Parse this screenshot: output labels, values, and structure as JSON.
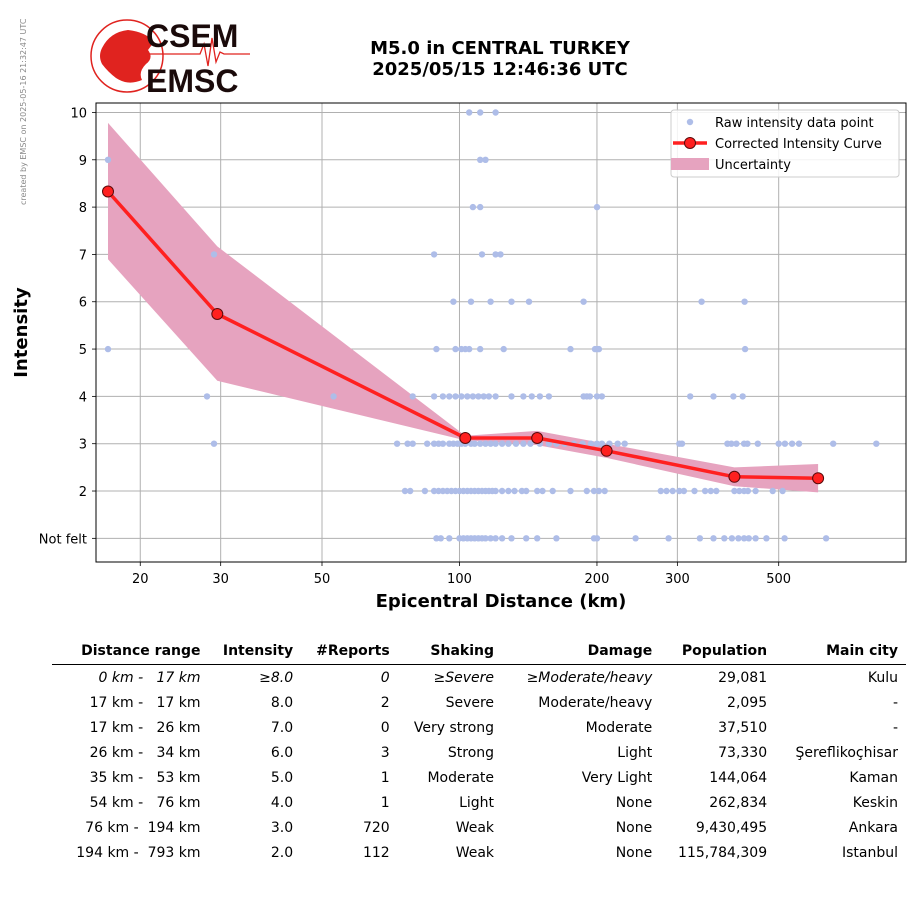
{
  "stamp": "created by EMSC on 2025-05-16 21:32:47 UTC",
  "logo": {
    "line1": "CSEM",
    "line2": "EMSC"
  },
  "title": {
    "line1": "M5.0 in CENTRAL TURKEY",
    "line2": "2025/05/15 12:46:36 UTC"
  },
  "colors": {
    "raw": "#aebde8",
    "curve": "#ff2020",
    "uncertainty": "#e6a3bf",
    "grid": "#b0b0b0",
    "logo": "#e0231f"
  },
  "chart_data": {
    "type": "scatter",
    "xlabel": "Epicentral Distance (km)",
    "ylabel": "Intensity",
    "xscale": "log",
    "xlim": [
      16,
      950
    ],
    "ylim": [
      0.5,
      10.2
    ],
    "xticks": [
      20,
      30,
      50,
      100,
      200,
      300,
      500
    ],
    "yticks": [
      {
        "value": 1,
        "label": "Not felt"
      },
      {
        "value": 2,
        "label": "2"
      },
      {
        "value": 3,
        "label": "3"
      },
      {
        "value": 4,
        "label": "4"
      },
      {
        "value": 5,
        "label": "5"
      },
      {
        "value": 6,
        "label": "6"
      },
      {
        "value": 7,
        "label": "7"
      },
      {
        "value": 8,
        "label": "8"
      },
      {
        "value": 9,
        "label": "9"
      },
      {
        "value": 10,
        "label": "10"
      }
    ],
    "grid": true,
    "legend_position": "top-right",
    "legend": [
      {
        "label": "Raw intensity data point"
      },
      {
        "label": "Corrected Intensity Curve"
      },
      {
        "label": "Uncertainty"
      }
    ],
    "series": [
      {
        "name": "Raw intensity data point",
        "points": [
          [
            105,
            10
          ],
          [
            111,
            10
          ],
          [
            120,
            10
          ],
          [
            17,
            9
          ],
          [
            111,
            9
          ],
          [
            114,
            9
          ],
          [
            107,
            8
          ],
          [
            111,
            8
          ],
          [
            200,
            8
          ],
          [
            29,
            7
          ],
          [
            88,
            7
          ],
          [
            112,
            7
          ],
          [
            120,
            7
          ],
          [
            123,
            7
          ],
          [
            97,
            6
          ],
          [
            106,
            6
          ],
          [
            117,
            6
          ],
          [
            130,
            6
          ],
          [
            142,
            6
          ],
          [
            187,
            6
          ],
          [
            339,
            6
          ],
          [
            421,
            6
          ],
          [
            17,
            5
          ],
          [
            89,
            5
          ],
          [
            98,
            5
          ],
          [
            101,
            5
          ],
          [
            103,
            5
          ],
          [
            105,
            5
          ],
          [
            111,
            5
          ],
          [
            125,
            5
          ],
          [
            175,
            5
          ],
          [
            198,
            5
          ],
          [
            200,
            5
          ],
          [
            202,
            5
          ],
          [
            422,
            5
          ],
          [
            28,
            4
          ],
          [
            53,
            4
          ],
          [
            79,
            4
          ],
          [
            88,
            4
          ],
          [
            92,
            4
          ],
          [
            95,
            4
          ],
          [
            98,
            4
          ],
          [
            101,
            4
          ],
          [
            104,
            4
          ],
          [
            107,
            4
          ],
          [
            110,
            4
          ],
          [
            113,
            4
          ],
          [
            116,
            4
          ],
          [
            120,
            4
          ],
          [
            130,
            4
          ],
          [
            138,
            4
          ],
          [
            144,
            4
          ],
          [
            150,
            4
          ],
          [
            157,
            4
          ],
          [
            187,
            4
          ],
          [
            190,
            4
          ],
          [
            193,
            4
          ],
          [
            200,
            4
          ],
          [
            205,
            4
          ],
          [
            320,
            4
          ],
          [
            360,
            4
          ],
          [
            398,
            4
          ],
          [
            417,
            4
          ],
          [
            29,
            3
          ],
          [
            73,
            3
          ],
          [
            77,
            3
          ],
          [
            79,
            3
          ],
          [
            85,
            3
          ],
          [
            88,
            3
          ],
          [
            90,
            3
          ],
          [
            92,
            3
          ],
          [
            95,
            3
          ],
          [
            97,
            3
          ],
          [
            99,
            3
          ],
          [
            101,
            3
          ],
          [
            103,
            3
          ],
          [
            106,
            3
          ],
          [
            108,
            3
          ],
          [
            111,
            3
          ],
          [
            114,
            3
          ],
          [
            117,
            3
          ],
          [
            120,
            3
          ],
          [
            124,
            3
          ],
          [
            128,
            3
          ],
          [
            133,
            3
          ],
          [
            138,
            3
          ],
          [
            143,
            3
          ],
          [
            150,
            3
          ],
          [
            157,
            3
          ],
          [
            163,
            3
          ],
          [
            170,
            3
          ],
          [
            178,
            3
          ],
          [
            186,
            3
          ],
          [
            194,
            3
          ],
          [
            200,
            3
          ],
          [
            205,
            3
          ],
          [
            213,
            3
          ],
          [
            222,
            3
          ],
          [
            230,
            3
          ],
          [
            303,
            3
          ],
          [
            307,
            3
          ],
          [
            386,
            3
          ],
          [
            394,
            3
          ],
          [
            404,
            3
          ],
          [
            420,
            3
          ],
          [
            427,
            3
          ],
          [
            450,
            3
          ],
          [
            500,
            3
          ],
          [
            516,
            3
          ],
          [
            535,
            3
          ],
          [
            554,
            3
          ],
          [
            658,
            3
          ],
          [
            818,
            3
          ],
          [
            76,
            2
          ],
          [
            78,
            2
          ],
          [
            84,
            2
          ],
          [
            88,
            2
          ],
          [
            90,
            2
          ],
          [
            92,
            2
          ],
          [
            94,
            2
          ],
          [
            96,
            2
          ],
          [
            98,
            2
          ],
          [
            100,
            2
          ],
          [
            102,
            2
          ],
          [
            104,
            2
          ],
          [
            106,
            2
          ],
          [
            108,
            2
          ],
          [
            110,
            2
          ],
          [
            112,
            2
          ],
          [
            114,
            2
          ],
          [
            116,
            2
          ],
          [
            118,
            2
          ],
          [
            120,
            2
          ],
          [
            124,
            2
          ],
          [
            128,
            2
          ],
          [
            132,
            2
          ],
          [
            137,
            2
          ],
          [
            140,
            2
          ],
          [
            148,
            2
          ],
          [
            152,
            2
          ],
          [
            160,
            2
          ],
          [
            175,
            2
          ],
          [
            190,
            2
          ],
          [
            197,
            2
          ],
          [
            202,
            2
          ],
          [
            208,
            2
          ],
          [
            276,
            2
          ],
          [
            284,
            2
          ],
          [
            293,
            2
          ],
          [
            303,
            2
          ],
          [
            310,
            2
          ],
          [
            327,
            2
          ],
          [
            345,
            2
          ],
          [
            355,
            2
          ],
          [
            365,
            2
          ],
          [
            400,
            2
          ],
          [
            410,
            2
          ],
          [
            420,
            2
          ],
          [
            428,
            2
          ],
          [
            445,
            2
          ],
          [
            485,
            2
          ],
          [
            510,
            2
          ],
          [
            89,
            1
          ],
          [
            91,
            1
          ],
          [
            95,
            1
          ],
          [
            100,
            1
          ],
          [
            102,
            1
          ],
          [
            104,
            1
          ],
          [
            106,
            1
          ],
          [
            108,
            1
          ],
          [
            110,
            1
          ],
          [
            112,
            1
          ],
          [
            114,
            1
          ],
          [
            117,
            1
          ],
          [
            120,
            1
          ],
          [
            124,
            1
          ],
          [
            130,
            1
          ],
          [
            140,
            1
          ],
          [
            148,
            1
          ],
          [
            163,
            1
          ],
          [
            197,
            1
          ],
          [
            200,
            1
          ],
          [
            243,
            1
          ],
          [
            287,
            1
          ],
          [
            336,
            1
          ],
          [
            360,
            1
          ],
          [
            380,
            1
          ],
          [
            395,
            1
          ],
          [
            408,
            1
          ],
          [
            420,
            1
          ],
          [
            430,
            1
          ],
          [
            445,
            1
          ],
          [
            470,
            1
          ],
          [
            515,
            1
          ],
          [
            635,
            1
          ]
        ]
      },
      {
        "name": "Corrected Intensity Curve",
        "x": [
          17,
          29.5,
          103,
          148,
          210,
          400,
          610
        ],
        "y": [
          8.33,
          5.74,
          3.12,
          3.12,
          2.85,
          2.3,
          2.27
        ]
      },
      {
        "name": "Uncertainty",
        "x": [
          17,
          29.5,
          103,
          148,
          210,
          400,
          610
        ],
        "low": [
          6.9,
          4.33,
          3.07,
          2.97,
          2.7,
          2.1,
          1.97
        ],
        "high": [
          9.78,
          7.17,
          3.17,
          3.27,
          3.0,
          2.5,
          2.57
        ]
      }
    ]
  },
  "table": {
    "headers": [
      "Distance range",
      "Intensity",
      "#Reports",
      "Shaking",
      "Damage",
      "Population",
      "Main city"
    ],
    "rows": [
      {
        "range": "0 km -   17 km",
        "intensity": "≥8.0",
        "reports": "0",
        "shaking": "≥Severe",
        "damage": "≥Moderate/heavy",
        "population": "29,081",
        "city": "Kulu",
        "italic": true
      },
      {
        "range": "17 km -   17 km",
        "intensity": "8.0",
        "reports": "2",
        "shaking": "Severe",
        "damage": "Moderate/heavy",
        "population": "2,095",
        "city": "-"
      },
      {
        "range": "17 km -   26 km",
        "intensity": "7.0",
        "reports": "0",
        "shaking": "Very strong",
        "damage": "Moderate",
        "population": "37,510",
        "city": "-"
      },
      {
        "range": "26 km -   34 km",
        "intensity": "6.0",
        "reports": "3",
        "shaking": "Strong",
        "damage": "Light",
        "population": "73,330",
        "city": "Şereflikoçhisar"
      },
      {
        "range": "35 km -   53 km",
        "intensity": "5.0",
        "reports": "1",
        "shaking": "Moderate",
        "damage": "Very Light",
        "population": "144,064",
        "city": "Kaman"
      },
      {
        "range": "54 km -   76 km",
        "intensity": "4.0",
        "reports": "1",
        "shaking": "Light",
        "damage": "None",
        "population": "262,834",
        "city": "Keskin"
      },
      {
        "range": "76 km -  194 km",
        "intensity": "3.0",
        "reports": "720",
        "shaking": "Weak",
        "damage": "None",
        "population": "9,430,495",
        "city": "Ankara"
      },
      {
        "range": "194 km -  793 km",
        "intensity": "2.0",
        "reports": "112",
        "shaking": "Weak",
        "damage": "None",
        "population": "115,784,309",
        "city": "Istanbul"
      }
    ]
  }
}
